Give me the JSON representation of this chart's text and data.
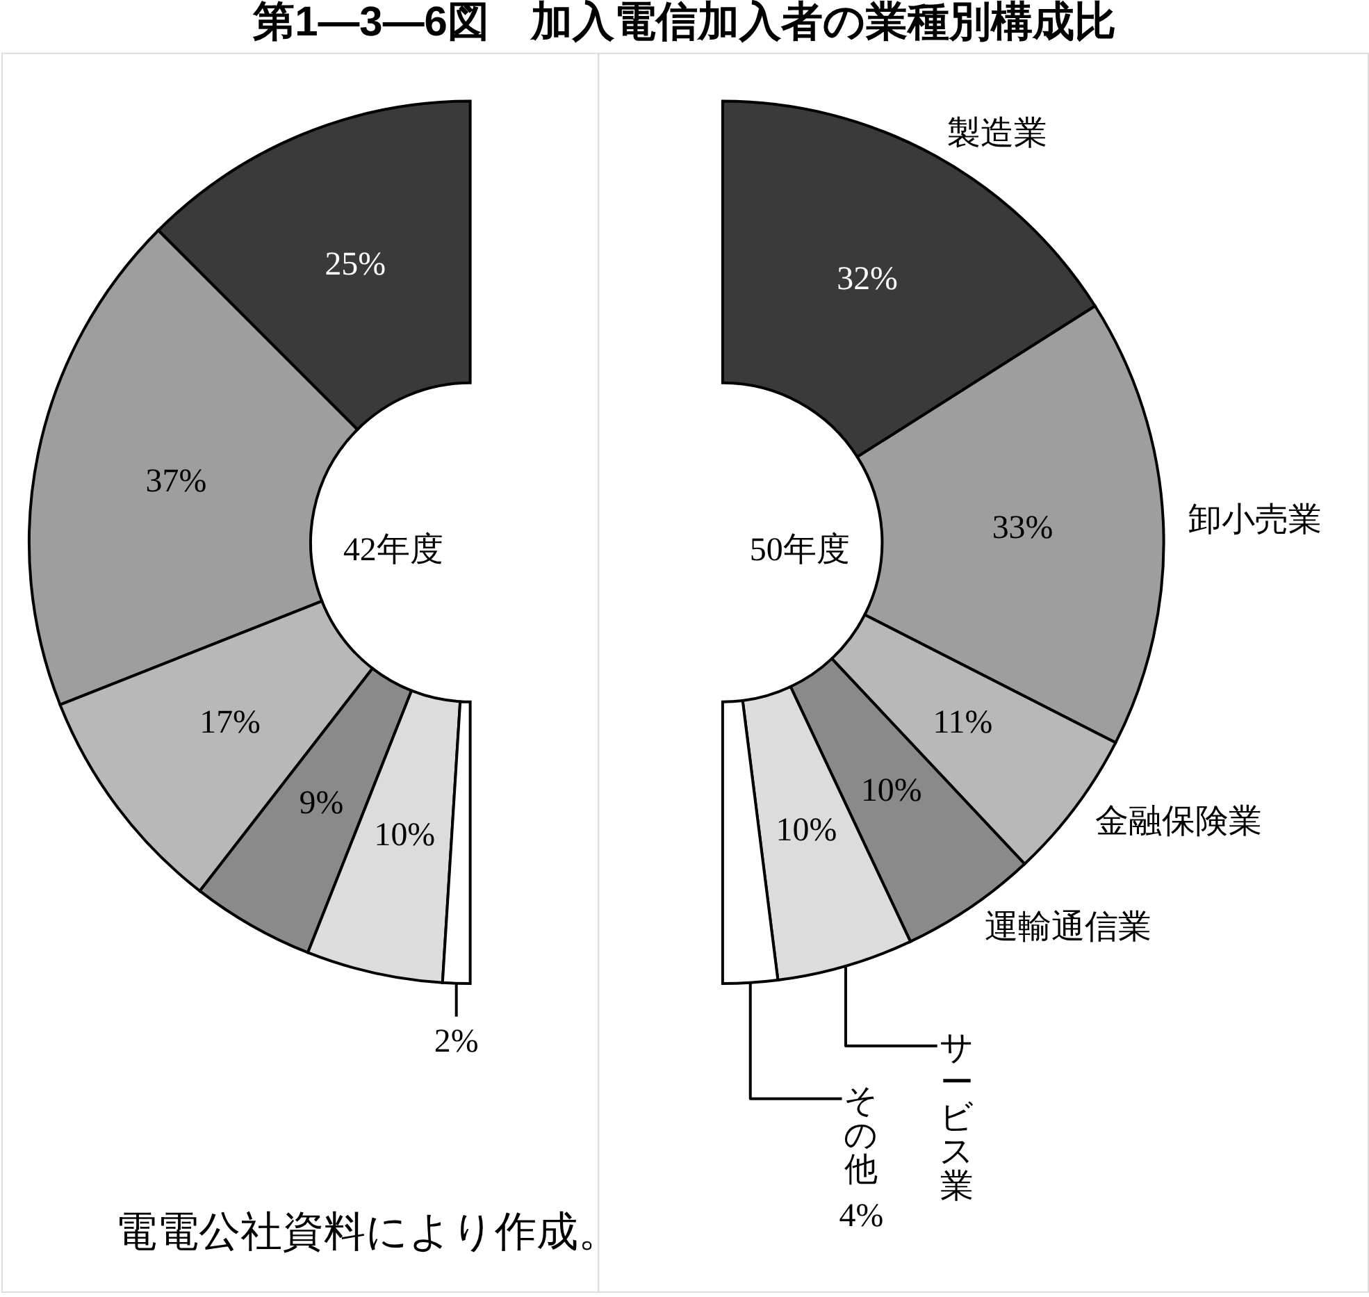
{
  "chart_data": [
    {
      "type": "donut",
      "title": "第1—3—6図　加入電信加入者の業種別構成比",
      "categories": [
        null,
        null,
        null,
        null,
        null,
        null
      ],
      "values": [
        25,
        37,
        17,
        9,
        10,
        2
      ],
      "colors": [
        "#3a3a3a",
        "#9e9e9e",
        "#b8b8b8",
        "#8a8a8a",
        "#dcdcdc",
        "#ffffff"
      ],
      "value_labels": [
        "25%",
        "37%",
        "17%",
        "9%",
        "10%",
        "2%"
      ],
      "annotations": [
        "42年度",
        "電電公社資料により作成。"
      ]
    },
    {
      "type": "donut",
      "categories": [
        "製造業",
        "卸小売業",
        "金融保険業",
        "運輸通信業",
        "サービス業",
        "その他"
      ],
      "values": [
        32,
        33,
        11,
        10,
        10,
        4
      ],
      "colors": [
        "#3a3a3a",
        "#9e9e9e",
        "#b8b8b8",
        "#8a8a8a",
        "#dcdcdc",
        "#ffffff"
      ],
      "value_labels": [
        "32%",
        "33%",
        "11%",
        "10%",
        "10%",
        "4%"
      ],
      "annotations": [
        "50年度"
      ]
    }
  ]
}
